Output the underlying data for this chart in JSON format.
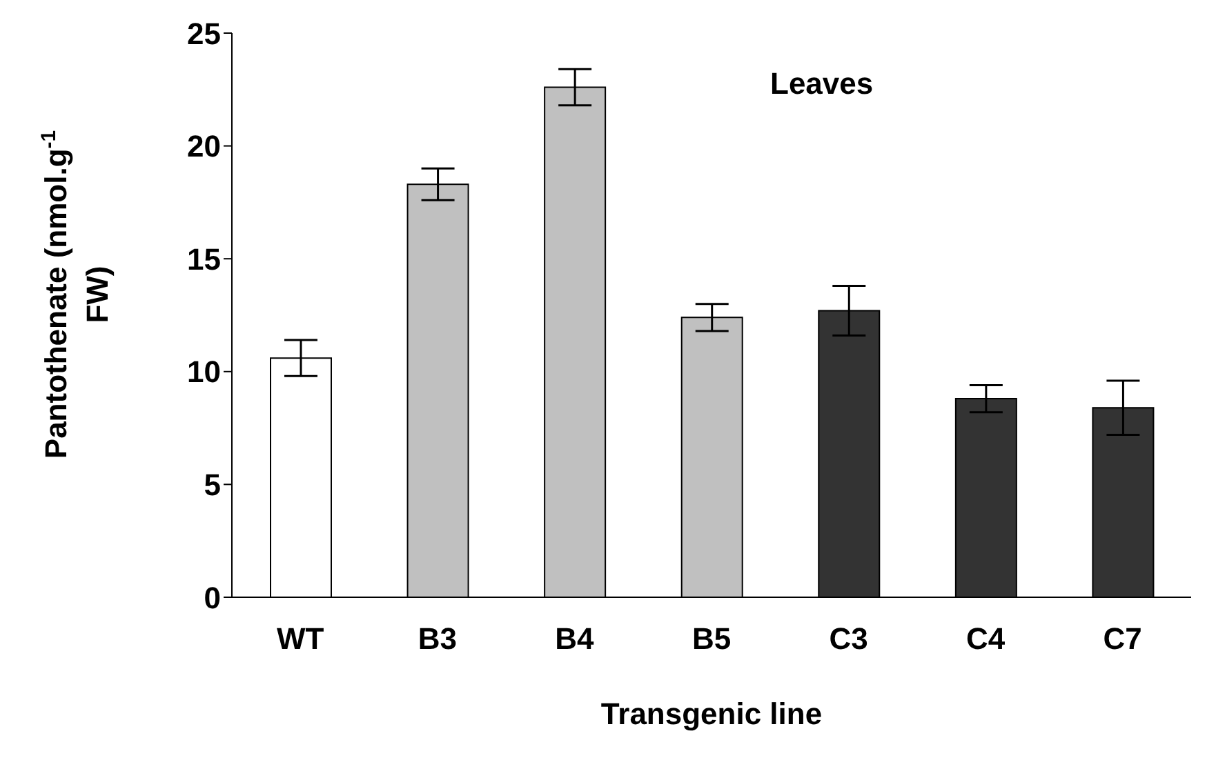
{
  "chart_data": {
    "type": "bar",
    "xlabel": "Transgenic line",
    "ylabel": "Pantothenate (nmol.g$^{-1}$ FW)",
    "annotations": [
      "Leaves"
    ],
    "categories": [
      "WT",
      "B3",
      "B4",
      "B5",
      "C3",
      "C4",
      "C7"
    ],
    "values": [
      10.6,
      18.3,
      22.6,
      12.4,
      12.7,
      8.8,
      8.4
    ],
    "errors": [
      0.8,
      0.7,
      0.8,
      0.6,
      1.1,
      0.6,
      1.2
    ],
    "colors": [
      "#ffffff",
      "#c0c0c0",
      "#c0c0c0",
      "#c0c0c0",
      "#333333",
      "#333333",
      "#333333"
    ],
    "ylim": [
      0,
      25
    ],
    "yticks": [
      0,
      5,
      10,
      15,
      20,
      25
    ],
    "grid": false,
    "legend": false
  }
}
